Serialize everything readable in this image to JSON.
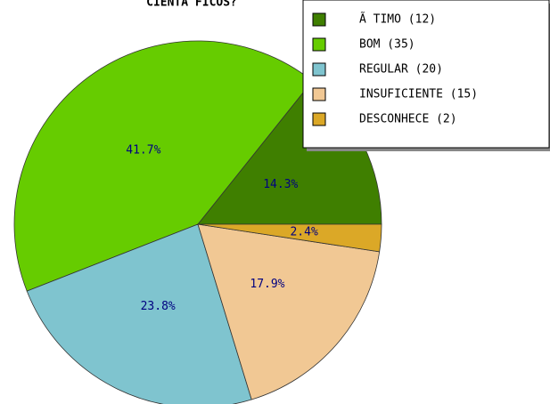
{
  "chart_data": {
    "type": "pie",
    "title": "CIENTÃ FICOS?",
    "categories": [
      "Ã TIMO (12)",
      "BOM (35)",
      "REGULAR (20)",
      "INSUFICIENTE (15)",
      "DESCONHECE (2)"
    ],
    "values": [
      14.3,
      41.7,
      23.8,
      17.9,
      2.4
    ],
    "value_labels": [
      "14.3%",
      "41.7%",
      "23.8%",
      "17.9%",
      "2.4%"
    ],
    "colors": [
      "#3f7f00",
      "#66cc00",
      "#7fc4cf",
      "#f1c894",
      "#dba827"
    ],
    "legend": "top-right"
  }
}
